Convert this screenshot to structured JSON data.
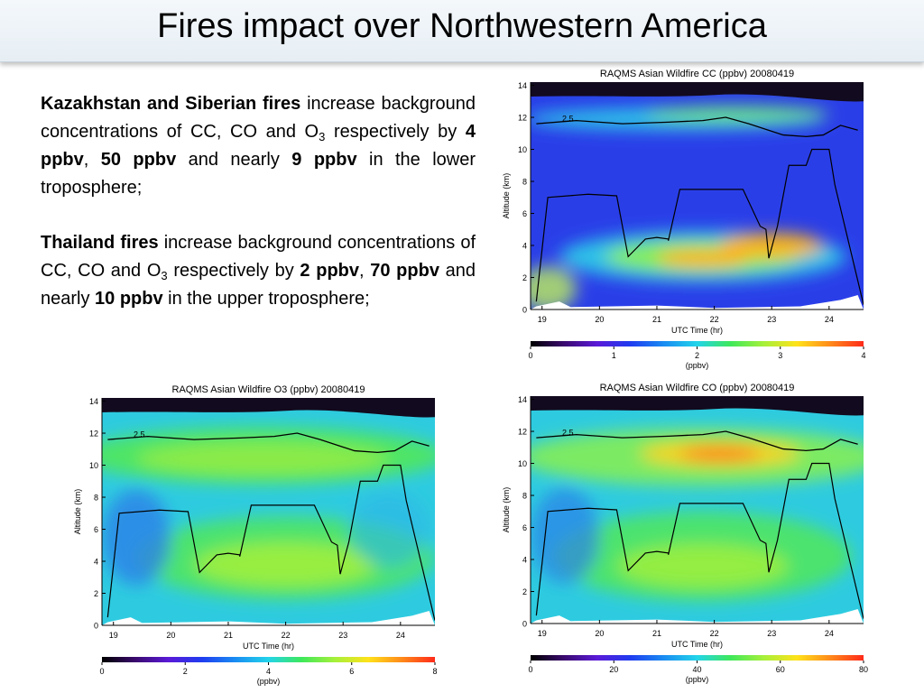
{
  "slide": {
    "title": "Fires impact over Northwestern America"
  },
  "text": {
    "p1": {
      "bold_lead": "Kazakhstan and Siberian fires",
      "part1": " increase background concentrations of CC, CO and O",
      "sub": "3",
      "part2": " respectively by ",
      "v1": "4 ppbv",
      "sep1": ", ",
      "v2": "50 ppbv",
      "part3": " and nearly ",
      "v3": "9 ppbv",
      "tail": " in the lower troposphere;"
    },
    "p2": {
      "bold_lead": "Thailand fires",
      "part1": " increase background concentrations of CC, CO and O",
      "sub": "3",
      "part2": " respectively by ",
      "v1": "2 ppbv",
      "sep1": ", ",
      "v2": "70 ppbv",
      "part3": " and nearly ",
      "v3": "10 ppbv",
      "tail": " in the upper troposphere;"
    }
  },
  "chart_data": [
    {
      "id": "cc",
      "type": "heatmap",
      "title": "RAQMS Asian Wildfire CC (ppbv)  20080419",
      "xlabel": "UTC Time (hr)",
      "ylabel": "Altitude (km)",
      "xlim": [
        18.8,
        24.6
      ],
      "ylim": [
        0,
        14.2
      ],
      "xticks": [
        "19",
        "20",
        "21",
        "22",
        "23",
        "24"
      ],
      "yticks": [
        "0",
        "2",
        "4",
        "6",
        "8",
        "10",
        "12",
        "14"
      ],
      "contour_label": "2.5",
      "colorbar": {
        "min": 0,
        "max": 4,
        "ticks": [
          "0",
          "1",
          "2",
          "3",
          "4"
        ],
        "label": "(ppbv)"
      },
      "background_color": "#2a3ee8",
      "blobs": [
        {
          "x": 21.3,
          "y": 11.9,
          "rx": 2.6,
          "ry": 0.7,
          "color": "#2fd8e8",
          "opacity": 0.85
        },
        {
          "x": 22.4,
          "y": 12.2,
          "rx": 1.6,
          "ry": 0.5,
          "color": "#7cf06a",
          "opacity": 0.8
        },
        {
          "x": 21.8,
          "y": 3.3,
          "rx": 2.5,
          "ry": 1.6,
          "color": "#2fd8e8",
          "opacity": 0.85
        },
        {
          "x": 21.8,
          "y": 3.3,
          "rx": 1.7,
          "ry": 1.0,
          "color": "#8af04c",
          "opacity": 0.95
        },
        {
          "x": 21.8,
          "y": 3.2,
          "rx": 0.8,
          "ry": 0.55,
          "color": "#ffb21a",
          "opacity": 1
        },
        {
          "x": 23.0,
          "y": 4.0,
          "rx": 0.9,
          "ry": 0.8,
          "color": "#ffb21a",
          "opacity": 0.95
        },
        {
          "x": 19.1,
          "y": 1.3,
          "rx": 0.5,
          "ry": 1.4,
          "color": "#bff05a",
          "opacity": 0.8
        }
      ],
      "tropopause": {
        "x": [
          18.9,
          19.6,
          20.4,
          21.2,
          21.8,
          22.2,
          22.6,
          23.2,
          23.6,
          23.9,
          24.2,
          24.5
        ],
        "y": [
          11.6,
          11.8,
          11.6,
          11.7,
          11.8,
          12.0,
          11.6,
          10.9,
          10.8,
          10.9,
          11.5,
          11.2
        ]
      },
      "flight_track": {
        "x": [
          18.9,
          19.1,
          19.8,
          20.3,
          20.5,
          20.8,
          21.0,
          21.2,
          21.2,
          21.4,
          22.5,
          22.8,
          22.9,
          22.95,
          23.1,
          23.3,
          23.6,
          23.7,
          24.0,
          24.1,
          24.6
        ],
        "y": [
          0.5,
          7.0,
          7.2,
          7.1,
          3.3,
          4.4,
          4.5,
          4.4,
          4.3,
          7.5,
          7.5,
          5.2,
          5.0,
          3.2,
          5.2,
          9.0,
          9.0,
          10.0,
          10.0,
          7.8,
          0.3
        ]
      }
    },
    {
      "id": "o3",
      "type": "heatmap",
      "title": "RAQMS Asian Wildfire O3 (ppbv)  20080419",
      "xlabel": "UTC Time (hr)",
      "ylabel": "Altitude (km)",
      "xlim": [
        18.8,
        24.6
      ],
      "ylim": [
        0,
        14.2
      ],
      "xticks": [
        "19",
        "20",
        "21",
        "22",
        "23",
        "24"
      ],
      "yticks": [
        "0",
        "2",
        "4",
        "6",
        "8",
        "10",
        "12",
        "14"
      ],
      "contour_label": "2.5",
      "colorbar": {
        "min": 0,
        "max": 8,
        "ticks": [
          "0",
          "2",
          "4",
          "6",
          "8"
        ],
        "label": "(ppbv)"
      },
      "background_color": "#2ecbe0",
      "blobs": [
        {
          "x": 21.6,
          "y": 10.6,
          "rx": 3.2,
          "ry": 1.8,
          "color": "#52e85a",
          "opacity": 0.9
        },
        {
          "x": 21.6,
          "y": 10.4,
          "rx": 2.2,
          "ry": 1.0,
          "color": "#a6f03a",
          "opacity": 0.7
        },
        {
          "x": 22.0,
          "y": 4.2,
          "rx": 2.6,
          "ry": 2.6,
          "color": "#52e85a",
          "opacity": 0.85
        },
        {
          "x": 22.0,
          "y": 3.8,
          "rx": 1.6,
          "ry": 1.4,
          "color": "#a6f03a",
          "opacity": 0.85
        },
        {
          "x": 19.4,
          "y": 5.5,
          "rx": 0.6,
          "ry": 3.0,
          "color": "#2b7fe8",
          "opacity": 0.8
        },
        {
          "x": 23.8,
          "y": 6.0,
          "rx": 0.7,
          "ry": 2.4,
          "color": "#2bb6e8",
          "opacity": 0.6
        }
      ],
      "tropopause": {
        "x": [
          18.9,
          19.6,
          20.4,
          21.2,
          21.8,
          22.2,
          22.6,
          23.2,
          23.6,
          23.9,
          24.2,
          24.5
        ],
        "y": [
          11.6,
          11.8,
          11.6,
          11.7,
          11.8,
          12.0,
          11.6,
          10.9,
          10.8,
          10.9,
          11.5,
          11.2
        ]
      },
      "flight_track": {
        "x": [
          18.9,
          19.1,
          19.8,
          20.3,
          20.5,
          20.8,
          21.0,
          21.2,
          21.2,
          21.4,
          22.5,
          22.8,
          22.9,
          22.95,
          23.1,
          23.3,
          23.6,
          23.7,
          24.0,
          24.1,
          24.6
        ],
        "y": [
          0.5,
          7.0,
          7.2,
          7.1,
          3.3,
          4.4,
          4.5,
          4.4,
          4.3,
          7.5,
          7.5,
          5.2,
          5.0,
          3.2,
          5.2,
          9.0,
          9.0,
          10.0,
          10.0,
          7.8,
          0.3
        ]
      }
    },
    {
      "id": "co",
      "type": "heatmap",
      "title": "RAQMS Asian Wildfire CO (ppbv)  20080419",
      "xlabel": "UTC Time (hr)",
      "ylabel": "Altitude (km)",
      "xlim": [
        18.8,
        24.6
      ],
      "ylim": [
        0,
        14.2
      ],
      "xticks": [
        "19",
        "20",
        "21",
        "22",
        "23",
        "24"
      ],
      "yticks": [
        "0",
        "2",
        "4",
        "6",
        "8",
        "10",
        "12",
        "14"
      ],
      "contour_label": "2.5",
      "colorbar": {
        "min": 0,
        "max": 80,
        "ticks": [
          "0",
          "20",
          "40",
          "60",
          "80"
        ],
        "label": "(ppbv)"
      },
      "background_color": "#2ecbe0",
      "blobs": [
        {
          "x": 21.8,
          "y": 10.4,
          "rx": 3.2,
          "ry": 1.8,
          "color": "#8af04c",
          "opacity": 0.85
        },
        {
          "x": 22.1,
          "y": 10.6,
          "rx": 1.4,
          "ry": 0.8,
          "color": "#ffd21a",
          "opacity": 0.95
        },
        {
          "x": 22.1,
          "y": 10.6,
          "rx": 0.7,
          "ry": 0.45,
          "color": "#ff7a1a",
          "opacity": 0.95
        },
        {
          "x": 21.8,
          "y": 4.2,
          "rx": 2.6,
          "ry": 2.8,
          "color": "#52e85a",
          "opacity": 0.85
        },
        {
          "x": 21.8,
          "y": 3.6,
          "rx": 1.5,
          "ry": 1.4,
          "color": "#a6f03a",
          "opacity": 0.8
        },
        {
          "x": 19.4,
          "y": 5.5,
          "rx": 0.6,
          "ry": 3.0,
          "color": "#2b7fe8",
          "opacity": 0.7
        }
      ],
      "tropopause": {
        "x": [
          18.9,
          19.6,
          20.4,
          21.2,
          21.8,
          22.2,
          22.6,
          23.2,
          23.6,
          23.9,
          24.2,
          24.5
        ],
        "y": [
          11.6,
          11.8,
          11.6,
          11.7,
          11.8,
          12.0,
          11.6,
          10.9,
          10.8,
          10.9,
          11.5,
          11.2
        ]
      },
      "flight_track": {
        "x": [
          18.9,
          19.1,
          19.8,
          20.3,
          20.5,
          20.8,
          21.0,
          21.2,
          21.2,
          21.4,
          22.5,
          22.8,
          22.9,
          22.95,
          23.1,
          23.3,
          23.6,
          23.7,
          24.0,
          24.1,
          24.6
        ],
        "y": [
          0.5,
          7.0,
          7.2,
          7.1,
          3.3,
          4.4,
          4.5,
          4.4,
          4.3,
          7.5,
          7.5,
          5.2,
          5.0,
          3.2,
          5.2,
          9.0,
          9.0,
          10.0,
          10.0,
          7.8,
          0.3
        ]
      }
    }
  ]
}
